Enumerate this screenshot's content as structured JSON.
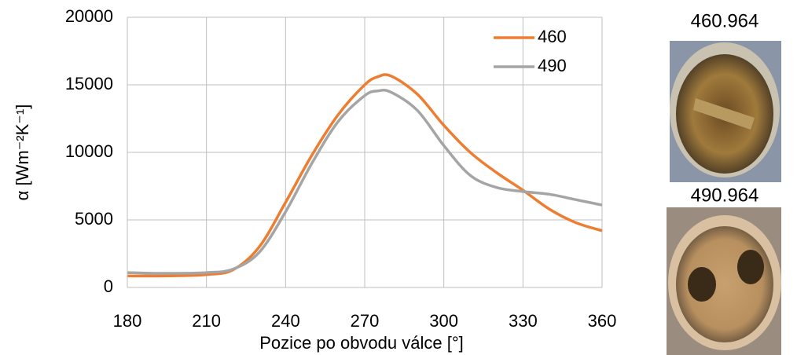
{
  "chart_data": {
    "type": "line",
    "x_label": "Pozice po obvodu válce [°]",
    "y_label": "α [Wm⁻²K⁻¹]",
    "x": [
      180,
      190,
      200,
      210,
      220,
      230,
      240,
      250,
      260,
      270,
      275,
      280,
      290,
      300,
      310,
      320,
      330,
      340,
      350,
      360
    ],
    "series": [
      {
        "name": "460",
        "color": "#ed7d31",
        "values": [
          850,
          850,
          870,
          950,
          1300,
          3000,
          6300,
          9800,
          12800,
          15000,
          15600,
          15650,
          14300,
          12000,
          10000,
          8500,
          7200,
          5800,
          4800,
          4200
        ]
      },
      {
        "name": "490",
        "color": "#a5a5a5",
        "values": [
          1100,
          1050,
          1050,
          1100,
          1350,
          2600,
          5600,
          9200,
          12300,
          14200,
          14550,
          14450,
          13100,
          10500,
          8300,
          7400,
          7100,
          6900,
          6500,
          6100
        ]
      }
    ],
    "xlim": [
      180,
      360
    ],
    "xticks": [
      180,
      210,
      240,
      270,
      300,
      330,
      360
    ],
    "ylim": [
      0,
      20000
    ],
    "yticks": [
      0,
      5000,
      10000,
      15000,
      20000
    ],
    "grid": true,
    "legend": "upper right"
  },
  "images": [
    {
      "caption": "460.964"
    },
    {
      "caption": "490.964"
    }
  ]
}
